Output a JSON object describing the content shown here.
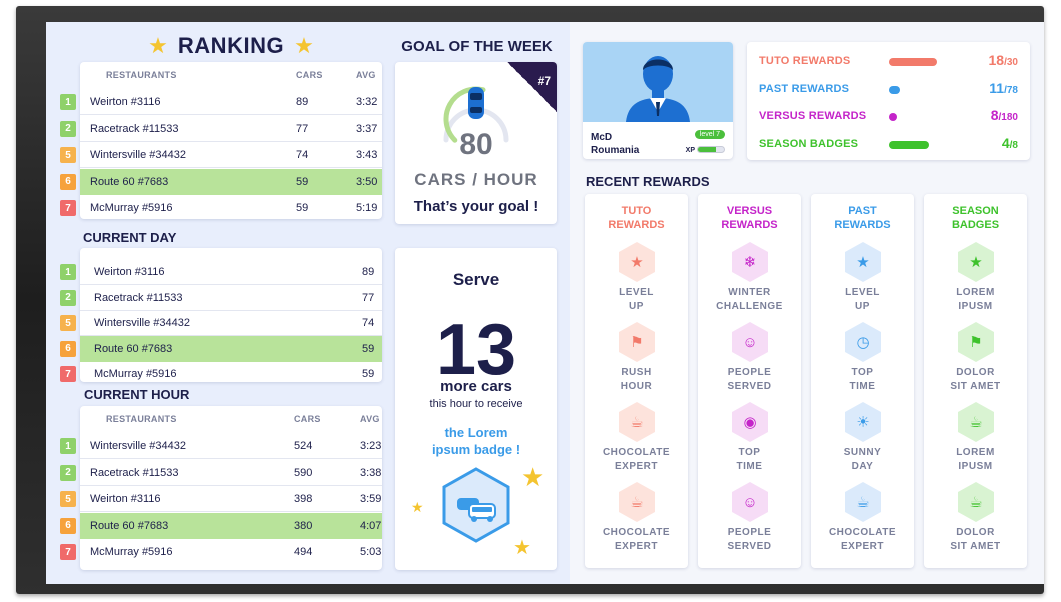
{
  "ranking": {
    "title": "RANKING",
    "headers": {
      "restaurants": "RESTAURANTS",
      "cars": "CARS",
      "avg": "AVG"
    },
    "rows": [
      {
        "rank": "1",
        "name": "Weirton #3116",
        "cars": "89",
        "avg": "3:32",
        "highlight": false
      },
      {
        "rank": "2",
        "name": "Racetrack #11533",
        "cars": "77",
        "avg": "3:37",
        "highlight": false
      },
      {
        "rank": "5",
        "name": "Wintersville #34432",
        "cars": "74",
        "avg": "3:43",
        "highlight": false
      },
      {
        "rank": "6",
        "name": "Route 60 #7683",
        "cars": "59",
        "avg": "3:50",
        "highlight": true
      },
      {
        "rank": "7",
        "name": "McMurray #5916",
        "cars": "59",
        "avg": "5:19",
        "highlight": false
      }
    ]
  },
  "current_day": {
    "title": "CURRENT DAY",
    "rows": [
      {
        "rank": "1",
        "name": "Weirton #3116",
        "cars": "89",
        "highlight": false
      },
      {
        "rank": "2",
        "name": "Racetrack #11533",
        "cars": "77",
        "highlight": false
      },
      {
        "rank": "5",
        "name": "Wintersville #34432",
        "cars": "74",
        "highlight": false
      },
      {
        "rank": "6",
        "name": "Route 60 #7683",
        "cars": "59",
        "highlight": true
      },
      {
        "rank": "7",
        "name": "McMurray #5916",
        "cars": "59",
        "highlight": false
      }
    ]
  },
  "current_hour": {
    "title": "CURRENT HOUR",
    "headers": {
      "restaurants": "RESTAURANTS",
      "cars": "CARS",
      "avg": "AVG"
    },
    "rows": [
      {
        "rank": "1",
        "name": "Wintersville #34432",
        "cars": "524",
        "avg": "3:23",
        "highlight": false
      },
      {
        "rank": "2",
        "name": "Racetrack #11533",
        "cars": "590",
        "avg": "3:38",
        "highlight": false
      },
      {
        "rank": "5",
        "name": "Weirton #3116",
        "cars": "398",
        "avg": "3:59",
        "highlight": false
      },
      {
        "rank": "6",
        "name": "Route 60 #7683",
        "cars": "380",
        "avg": "4:07",
        "highlight": true
      },
      {
        "rank": "7",
        "name": "McMurray #5916",
        "cars": "494",
        "avg": "5:03",
        "highlight": false
      }
    ]
  },
  "rank_colors": {
    "1": "#8fd16a",
    "2": "#8fd16a",
    "5": "#f6b24d",
    "6": "#f6a23c",
    "7": "#f06a6a"
  },
  "goal": {
    "title": "GOAL OF THE WEEK",
    "badge": "#7",
    "value": "80",
    "unit": "CARS / HOUR",
    "subtitle": "That’s your goal !",
    "progress": 0.55
  },
  "serve": {
    "title": "Serve",
    "number": "13",
    "more": "more cars",
    "hour_text": "this hour to receive",
    "badge_text_1": "the Lorem",
    "badge_text_2": "ipsum badge !"
  },
  "profile": {
    "name": "McD",
    "country": "Roumania",
    "level": "level 7",
    "xp_label": "XP",
    "xp_progress": 0.7
  },
  "rewards_summary": [
    {
      "label": "TUTO REWARDS",
      "value": "18",
      "total": "/30",
      "fraction": 0.6,
      "color": "#f27a6a"
    },
    {
      "label": "PAST REWARDS",
      "value": "11",
      "total": "/78",
      "fraction": 0.141,
      "color": "#3a9be8"
    },
    {
      "label": "VERSUS REWARDS",
      "value": "8",
      "total": "/180",
      "fraction": 0.044,
      "color": "#c424c9"
    },
    {
      "label": "SEASON BADGES",
      "value": "4",
      "total": "/8",
      "fraction": 0.5,
      "color": "#3ec22c"
    }
  ],
  "recent": {
    "title": "RECENT REWARDS",
    "columns": [
      {
        "head1": "TUTO",
        "head2": "REWARDS",
        "color": "#f27a6a",
        "tint": "#fde3dc",
        "items": [
          {
            "icon": "star-icon",
            "glyph": "★",
            "l1": "LEVEL",
            "l2": "UP"
          },
          {
            "icon": "flag-icon",
            "glyph": "⚑",
            "l1": "RUSH",
            "l2": "HOUR"
          },
          {
            "icon": "coffee-icon",
            "glyph": "☕",
            "l1": "CHOCOLATE",
            "l2": "EXPERT"
          },
          {
            "icon": "coffee-icon",
            "glyph": "☕",
            "l1": "CHOCOLATE",
            "l2": "EXPERT"
          }
        ]
      },
      {
        "head1": "VERSUS",
        "head2": "REWARDS",
        "color": "#c424c9",
        "tint": "#f6dcf6",
        "items": [
          {
            "icon": "snowflake-icon",
            "glyph": "❄",
            "l1": "WINTER",
            "l2": "CHALLENGE"
          },
          {
            "icon": "people-icon",
            "glyph": "☺",
            "l1": "PEOPLE",
            "l2": "SERVED"
          },
          {
            "icon": "timer-icon",
            "glyph": "◉",
            "l1": "TOP",
            "l2": "TIME"
          },
          {
            "icon": "people-icon",
            "glyph": "☺",
            "l1": "PEOPLE",
            "l2": "SERVED"
          }
        ]
      },
      {
        "head1": "PAST",
        "head2": "REWARDS",
        "color": "#3a9be8",
        "tint": "#dbeafb",
        "items": [
          {
            "icon": "star-icon",
            "glyph": "★",
            "l1": "LEVEL",
            "l2": "UP"
          },
          {
            "icon": "timer-icon",
            "glyph": "◷",
            "l1": "TOP",
            "l2": "TIME"
          },
          {
            "icon": "sun-icon",
            "glyph": "☀",
            "l1": "SUNNY",
            "l2": "DAY"
          },
          {
            "icon": "coffee-icon",
            "glyph": "☕",
            "l1": "CHOCOLATE",
            "l2": "EXPERT"
          }
        ]
      },
      {
        "head1": "SEASON",
        "head2": "BADGES",
        "color": "#3ec22c",
        "tint": "#d9f3d2",
        "items": [
          {
            "icon": "star-icon",
            "glyph": "★",
            "l1": "LOREM",
            "l2": "IPUSM"
          },
          {
            "icon": "flag-icon",
            "glyph": "⚑",
            "l1": "DOLOR",
            "l2": "SIT AMET"
          },
          {
            "icon": "coffee-icon",
            "glyph": "☕",
            "l1": "LOREM",
            "l2": "IPUSM"
          },
          {
            "icon": "coffee-icon",
            "glyph": "☕",
            "l1": "DOLOR",
            "l2": "SIT AMET"
          }
        ]
      }
    ]
  }
}
